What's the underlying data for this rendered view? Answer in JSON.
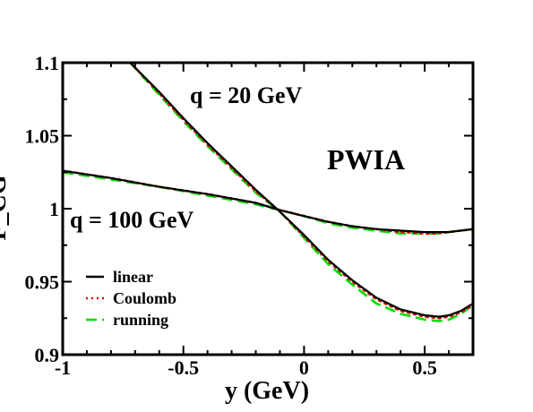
{
  "chart_data": {
    "type": "line",
    "xlabel": "y (GeV)",
    "ylabel": "F_CG",
    "xlim": [
      -1,
      0.7
    ],
    "ylim": [
      0.9,
      1.1
    ],
    "x_ticks": [
      "-1",
      "-0.5",
      "0",
      "0.5"
    ],
    "y_ticks": [
      "0.9",
      "0.95",
      "1",
      "1.05",
      "1.1"
    ],
    "annotations": {
      "q20": "q = 20 GeV",
      "q100": "q = 100 GeV",
      "method": "PWIA"
    },
    "legend_position": "bottom-left",
    "legend": [
      {
        "label": "linear",
        "color": "#000000",
        "style": "solid"
      },
      {
        "label": "Coulomb",
        "color": "#e00000",
        "style": "dotted"
      },
      {
        "label": "running",
        "color": "#00dd00",
        "style": "dashed"
      }
    ],
    "series": [
      {
        "name": "linear",
        "group": "q = 20 GeV",
        "color": "#000000",
        "style": "solid",
        "x": [
          -0.72,
          -0.6,
          -0.5,
          -0.4,
          -0.3,
          -0.2,
          -0.1,
          0.0,
          0.1,
          0.2,
          0.3,
          0.4,
          0.5,
          0.56,
          0.6,
          0.65,
          0.7
        ],
        "y": [
          1.1,
          1.08,
          1.062,
          1.045,
          1.029,
          1.013,
          0.998,
          0.982,
          0.965,
          0.951,
          0.939,
          0.931,
          0.927,
          0.926,
          0.927,
          0.93,
          0.935
        ]
      },
      {
        "name": "Coulomb",
        "group": "q = 20 GeV",
        "color": "#e00000",
        "style": "dotted",
        "x": [
          -0.72,
          -0.6,
          -0.5,
          -0.4,
          -0.3,
          -0.2,
          -0.1,
          0.0,
          0.1,
          0.2,
          0.3,
          0.4,
          0.5,
          0.56,
          0.6,
          0.65,
          0.7
        ],
        "y": [
          1.1,
          1.079,
          1.061,
          1.044,
          1.028,
          1.012,
          0.998,
          0.981,
          0.964,
          0.95,
          0.938,
          0.93,
          0.926,
          0.925,
          0.926,
          0.929,
          0.934
        ]
      },
      {
        "name": "running",
        "group": "q = 20 GeV",
        "color": "#00dd00",
        "style": "dashed",
        "x": [
          -0.72,
          -0.6,
          -0.5,
          -0.4,
          -0.3,
          -0.2,
          -0.1,
          0.0,
          0.1,
          0.2,
          0.3,
          0.4,
          0.5,
          0.56,
          0.6,
          0.65,
          0.7
        ],
        "y": [
          1.1,
          1.078,
          1.06,
          1.043,
          1.027,
          1.011,
          0.998,
          0.98,
          0.962,
          0.948,
          0.935,
          0.928,
          0.924,
          0.923,
          0.924,
          0.928,
          0.934
        ]
      },
      {
        "name": "linear",
        "group": "q = 100 GeV",
        "color": "#000000",
        "style": "solid",
        "x": [
          -1.0,
          -0.8,
          -0.6,
          -0.4,
          -0.2,
          -0.1,
          0.0,
          0.1,
          0.2,
          0.3,
          0.4,
          0.5,
          0.55,
          0.6,
          0.7
        ],
        "y": [
          1.026,
          1.021,
          1.015,
          1.01,
          1.004,
          0.999,
          0.995,
          0.991,
          0.988,
          0.986,
          0.985,
          0.984,
          0.984,
          0.984,
          0.986
        ]
      },
      {
        "name": "Coulomb",
        "group": "q = 100 GeV",
        "color": "#e00000",
        "style": "dotted",
        "x": [
          -1.0,
          -0.8,
          -0.6,
          -0.4,
          -0.2,
          -0.1,
          0.0,
          0.1,
          0.2,
          0.3,
          0.4,
          0.5,
          0.55,
          0.6,
          0.7
        ],
        "y": [
          1.026,
          1.021,
          1.015,
          1.01,
          1.004,
          0.999,
          0.995,
          0.991,
          0.988,
          0.986,
          0.984,
          0.983,
          0.983,
          0.984,
          0.986
        ]
      },
      {
        "name": "running",
        "group": "q = 100 GeV",
        "color": "#00dd00",
        "style": "dashed",
        "x": [
          -1.0,
          -0.8,
          -0.6,
          -0.4,
          -0.2,
          -0.1,
          0.0,
          0.1,
          0.2,
          0.3,
          0.4,
          0.5,
          0.55,
          0.6,
          0.7
        ],
        "y": [
          1.025,
          1.02,
          1.015,
          1.009,
          1.003,
          0.999,
          0.995,
          0.99,
          0.987,
          0.985,
          0.983,
          0.983,
          0.983,
          0.984,
          0.986
        ]
      }
    ]
  }
}
